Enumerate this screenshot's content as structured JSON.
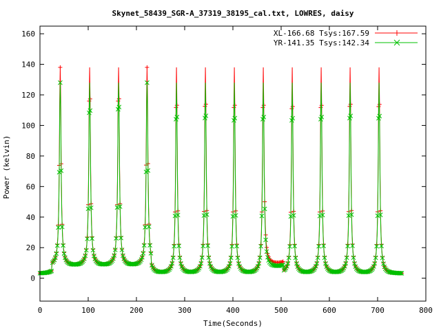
{
  "chart_data": {
    "type": "line",
    "title": "Skynet_58439_SGR-A_37319_38195_cal.txt, LOWRES, daisy",
    "xlabel": "Time(Seconds)",
    "ylabel": "Power (kelvin)",
    "xlim": [
      0,
      800
    ],
    "ylim": [
      -15,
      165
    ],
    "xticks": [
      0,
      100,
      200,
      300,
      400,
      500,
      600,
      700,
      800
    ],
    "yticks": [
      0,
      20,
      40,
      60,
      80,
      100,
      120,
      140,
      160
    ],
    "grid": false,
    "legend_position": "top-right",
    "end_time": 750,
    "baseline": 3,
    "peaks": [
      {
        "t": 42,
        "xl": 137,
        "yr": 127
      },
      {
        "t": 103,
        "xl": 135,
        "yr": 125
      },
      {
        "t": 163,
        "xl": 135,
        "yr": 128
      },
      {
        "t": 222,
        "xl": 137,
        "yr": 127
      },
      {
        "t": 283,
        "xl": 136,
        "yr": 126
      },
      {
        "t": 343,
        "xl": 137,
        "yr": 127
      },
      {
        "t": 403,
        "xl": 136,
        "yr": 125
      },
      {
        "t": 463,
        "xl": 136,
        "yr": 126
      },
      {
        "t": 523,
        "xl": 135,
        "yr": 125
      },
      {
        "t": 583,
        "xl": 136,
        "yr": 126
      },
      {
        "t": 643,
        "xl": 137,
        "yr": 127
      },
      {
        "t": 703,
        "xl": 137,
        "yr": 127
      }
    ],
    "series": [
      {
        "name": "XL-166.68 Tsys:167.59",
        "color": "#ff0000",
        "marker": "+"
      },
      {
        "name": "YR-141.35 Tsys:142.34",
        "color": "#00c000",
        "marker": "x"
      }
    ]
  }
}
